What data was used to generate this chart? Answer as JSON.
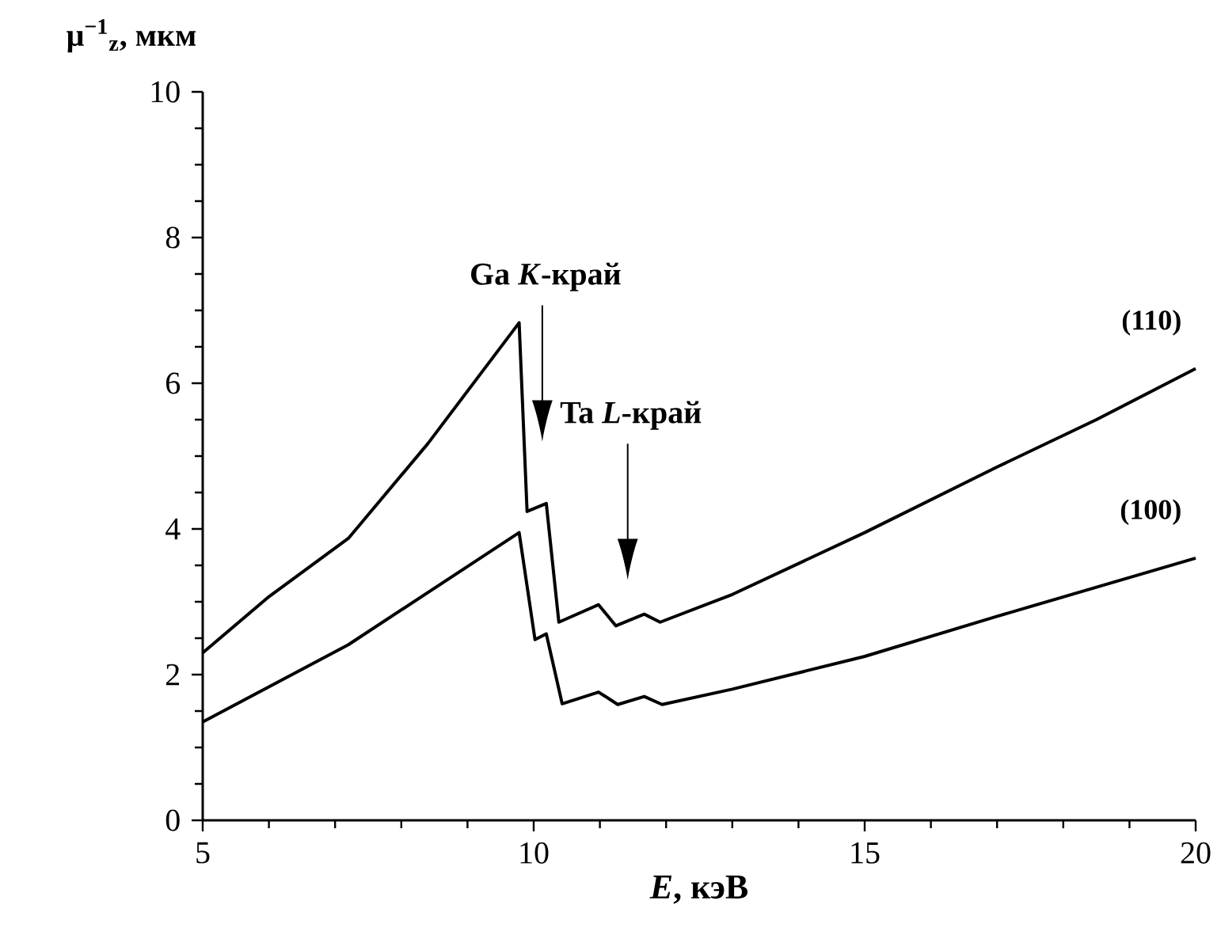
{
  "chart_data": {
    "type": "line",
    "xlabel": "*E*, кэВ",
    "ylabel": "μ$^{−1}$$_{z}$, мкм",
    "xlim": [
      5,
      20
    ],
    "ylim": [
      0,
      10
    ],
    "xticks": [
      5,
      10,
      15,
      20
    ],
    "yticks": [
      0,
      2,
      4,
      6,
      8,
      10
    ],
    "grid": false,
    "marker": "none",
    "line_style": "solid",
    "series": [
      {
        "name": "(110)",
        "color": "#000000",
        "x": [
          5,
          6,
          7.2,
          8.4,
          9.78,
          9.9,
          10.19,
          10.38,
          10.98,
          11.24,
          11.67,
          11.91,
          13,
          15,
          17,
          18.5,
          20
        ],
        "values": [
          2.3,
          3.07,
          3.87,
          5.17,
          6.83,
          4.24,
          4.35,
          2.72,
          2.96,
          2.67,
          2.83,
          2.72,
          3.1,
          3.95,
          4.85,
          5.5,
          6.2
        ]
      },
      {
        "name": "(100)",
        "color": "#000000",
        "x": [
          5,
          7.2,
          9.78,
          10.02,
          10.19,
          10.43,
          10.98,
          11.27,
          11.67,
          11.94,
          13,
          15,
          17,
          18.5,
          20
        ],
        "values": [
          1.35,
          2.41,
          3.95,
          2.48,
          2.56,
          1.6,
          1.76,
          1.59,
          1.7,
          1.59,
          1.8,
          2.25,
          2.8,
          3.2,
          3.6
        ]
      }
    ],
    "legend": false,
    "annotations": [
      "Ga *K*-край",
      "Ta *L*-край"
    ]
  }
}
